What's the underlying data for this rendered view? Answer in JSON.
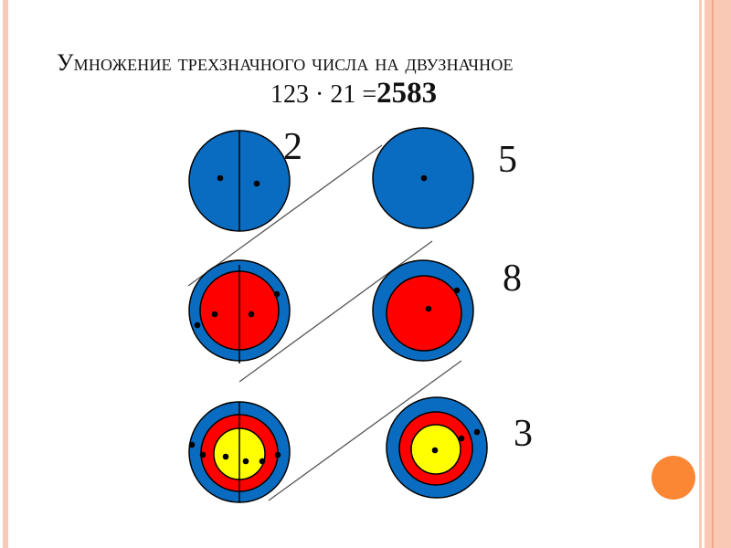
{
  "title": "Умножение трехзначного числа на двузначное",
  "equation": {
    "left": "123 · 21 =",
    "result": "2583"
  },
  "digits": [
    "2",
    "5",
    "8",
    "3"
  ],
  "colors": {
    "blue": "#0a6cc0",
    "red": "#ff0000",
    "yellow": "#ffff00",
    "accent": "#fb8735",
    "border": "#f8c7b5"
  }
}
